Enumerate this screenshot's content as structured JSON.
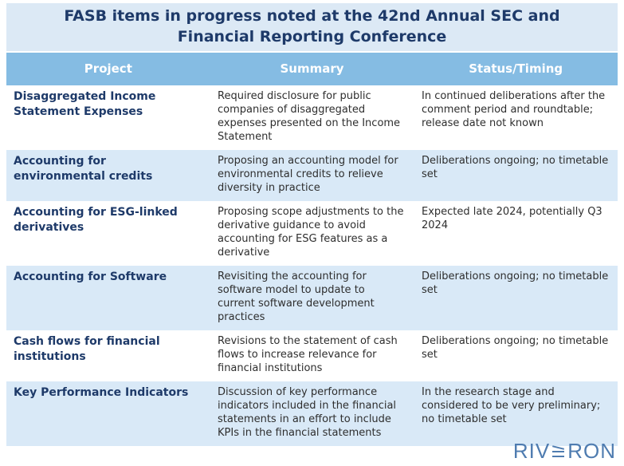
{
  "title": "FASB items in progress noted at the 42nd Annual SEC and Financial Reporting Conference",
  "table": {
    "columns": [
      "Project",
      "Summary",
      "Status/Timing"
    ],
    "rows": [
      {
        "project": "Disaggregated Income Statement Expenses",
        "summary": "Required disclosure for public companies of disaggregated expenses presented on the Income Statement",
        "status": "In continued deliberations after the comment period and roundtable; release date not known"
      },
      {
        "project": "Accounting for environmental credits",
        "summary": "Proposing an accounting model for environmental credits to relieve diversity in practice",
        "status": "Deliberations ongoing; no timetable set"
      },
      {
        "project": "Accounting for ESG-linked derivatives",
        "summary": "Proposing scope adjustments to the derivative guidance to avoid accounting for ESG features as a derivative",
        "status": "Expected late 2024, potentially Q3 2024"
      },
      {
        "project": "Accounting for Software",
        "summary": "Revisiting the accounting for software model to update to current software development practices",
        "status": "Deliberations ongoing; no timetable set"
      },
      {
        "project": "Cash flows for financial institutions",
        "summary": "Revisions to the statement of cash flows to increase relevance for financial institutions",
        "status": "Deliberations ongoing; no timetable set"
      },
      {
        "project": "Key Performance Indicators",
        "summary": "Discussion of key performance indicators included in the financial statements in an effort to include KPIs in the financial statements",
        "status": "In the research stage and considered to be very preliminary; no timetable set"
      }
    ]
  },
  "logo": {
    "brand": "RIVERON",
    "prefix": "RIV",
    "suffix": "RON"
  },
  "colors": {
    "title_band_bg": "#dce9f5",
    "header_bg": "#85bce3",
    "alt_row_bg": "#d9e9f7",
    "navy_text": "#1e3a69",
    "body_text": "#2e2e2e",
    "logo_blue": "#4f7cb0"
  }
}
